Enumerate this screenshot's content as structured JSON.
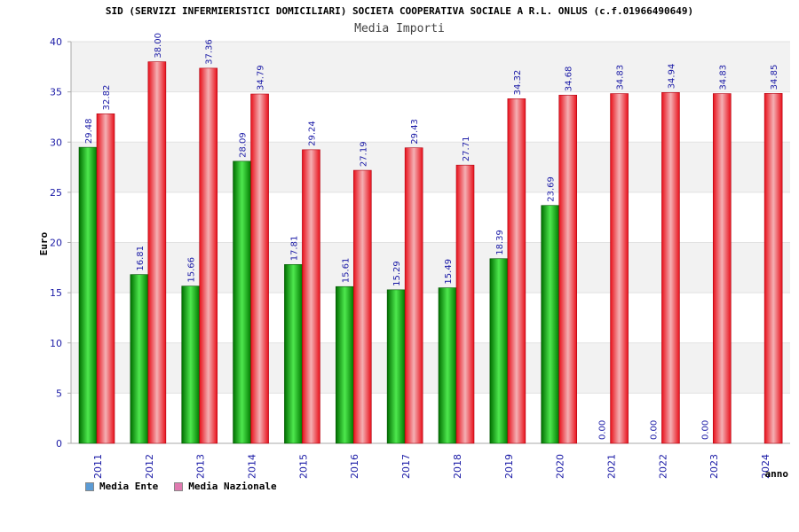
{
  "chart_data": {
    "type": "bar",
    "title": "SID (SERVIZI INFERMIERISTICI DOMICILIARI) SOCIETA COOPERATIVA SOCIALE A R.L. ONLUS (c.f.01966490649)",
    "subtitle": "Media Importi",
    "xlabel": "anno",
    "ylabel": "Euro",
    "ylim": [
      0,
      40
    ],
    "yticks": [
      0,
      5,
      10,
      15,
      20,
      25,
      30,
      35,
      40
    ],
    "categories": [
      "2011",
      "2012",
      "2013",
      "2014",
      "2015",
      "2016",
      "2017",
      "2018",
      "2019",
      "2020",
      "2021",
      "2022",
      "2023",
      "2024"
    ],
    "series": [
      {
        "name": "Media Ente",
        "color": "#00b400",
        "values": [
          29.48,
          16.81,
          15.66,
          28.09,
          17.81,
          15.61,
          15.29,
          15.49,
          18.39,
          23.69,
          0.0,
          0.0,
          0.0,
          null
        ],
        "labels": [
          "29.48",
          "16.81",
          "15.66",
          "28.09",
          "17.81",
          "15.61",
          "15.29",
          "15.49",
          "18.39",
          "23.69",
          "0.00",
          "0.00",
          "0.00",
          ""
        ]
      },
      {
        "name": "Media Nazionale",
        "color": "#e8101a",
        "values": [
          32.82,
          38.0,
          37.36,
          34.79,
          29.24,
          27.19,
          29.43,
          27.71,
          34.32,
          34.68,
          34.83,
          34.94,
          34.83,
          34.85
        ],
        "labels": [
          "32.82",
          "38.00",
          "37.36",
          "34.79",
          "29.24",
          "27.19",
          "29.43",
          "27.71",
          "34.32",
          "34.68",
          "34.83",
          "34.94",
          "34.83",
          "34.85"
        ]
      }
    ],
    "legend": {
      "position": "bottom-left",
      "items": [
        {
          "label": "Media Ente",
          "color": "#5b9bd5"
        },
        {
          "label": "Media Nazionale",
          "color": "#e07ab0"
        }
      ]
    },
    "grid": true
  }
}
